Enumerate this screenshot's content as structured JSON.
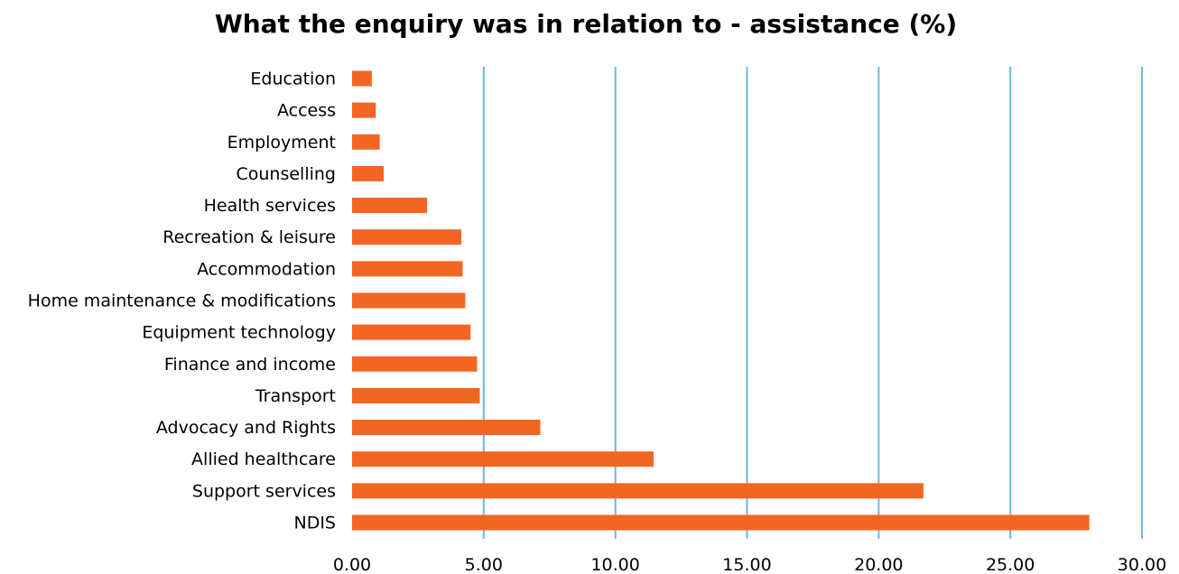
{
  "chart_data": {
    "type": "bar",
    "orientation": "horizontal",
    "title": "What the enquiry was in relation to - assistance (%)",
    "xlabel": "",
    "ylabel": "",
    "categories": [
      "Education",
      "Access",
      "Employment",
      "Counselling",
      "Health services",
      "Recreation & leisure",
      "Accommodation",
      "Home maintenance & modifications",
      "Equipment technology",
      "Finance and income",
      "Transport",
      "Advocacy and Rights",
      "Allied healthcare",
      "Support services",
      "NDIS"
    ],
    "values": [
      0.75,
      0.9,
      1.05,
      1.2,
      2.85,
      4.15,
      4.2,
      4.3,
      4.5,
      4.75,
      4.85,
      7.15,
      11.45,
      21.7,
      28.0
    ],
    "xlim": [
      0,
      30
    ],
    "ticks": [
      0,
      5,
      10,
      15,
      20,
      25,
      30
    ],
    "tick_labels": [
      "0.00",
      "5.00",
      "10.00",
      "15.00",
      "20.00",
      "25.00",
      "30.00"
    ],
    "grid": "vertical",
    "legend": "none",
    "bar_color": "#F26522",
    "grid_color": "#6BB7E3"
  }
}
